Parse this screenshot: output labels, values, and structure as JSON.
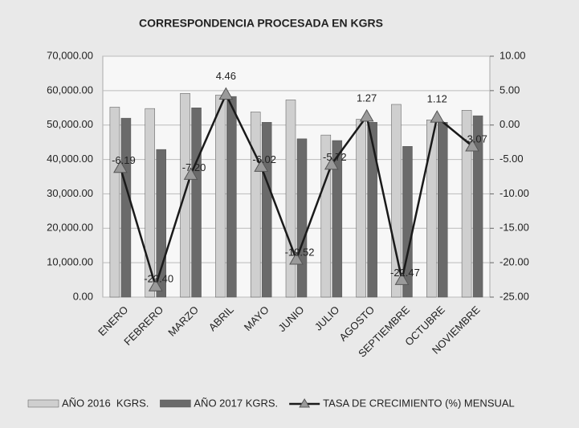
{
  "chart_data": {
    "type": "bar_line",
    "title": "CORRESPONDENCIA PROCESADA EN KGRS",
    "categories": [
      "ENERO",
      "FEBRERO",
      "MARZO",
      "ABRIL",
      "MAYO",
      "JUNIO",
      "JULIO",
      "AGOSTO",
      "SEPTIEMBRE",
      "OCTUBRE",
      "NOVIEMBRE"
    ],
    "series": [
      {
        "name": "AÑO 2016  KGRS.",
        "type": "bar",
        "color": "#cfcfcf",
        "values": [
          55200,
          54800,
          59200,
          58700,
          53800,
          57300,
          47100,
          51700,
          56000,
          51500,
          54300
        ]
      },
      {
        "name": "AÑO 2017 KGRS.",
        "type": "bar",
        "color": "#6a6a6a",
        "values": [
          52000,
          42900,
          55000,
          58300,
          50800,
          46000,
          45500,
          50800,
          43800,
          50800,
          52700
        ]
      },
      {
        "name": "TASA DE CRECIMIENTO (%) MENSUAL",
        "type": "line",
        "axis": "y2",
        "color": "#1a1a1a",
        "values": [
          -6.19,
          -23.4,
          -7.2,
          4.46,
          -6.02,
          -19.52,
          -5.72,
          1.27,
          -22.47,
          1.12,
          -3.07
        ],
        "value_labels": [
          "-6.19",
          "-23.40",
          "-7.20",
          "4.46",
          "-6.02",
          "-19.52",
          "-5.72",
          "1.27",
          "-22.47",
          "1.12",
          "-3.07"
        ]
      }
    ],
    "ylim": [
      0,
      70000
    ],
    "yticks": [
      {
        "value": 0,
        "label": "0.00"
      },
      {
        "value": 10000,
        "label": "10,000.00"
      },
      {
        "value": 20000,
        "label": "20,000.00"
      },
      {
        "value": 30000,
        "label": "30,000.00"
      },
      {
        "value": 40000,
        "label": "40,000.00"
      },
      {
        "value": 50000,
        "label": "50,000.00"
      },
      {
        "value": 60000,
        "label": "60,000.00"
      },
      {
        "value": 70000,
        "label": "70,000.00"
      }
    ],
    "y2lim": [
      -25,
      10
    ],
    "y2ticks": [
      {
        "value": -25,
        "label": "-25.00"
      },
      {
        "value": -20,
        "label": "-20.00"
      },
      {
        "value": -15,
        "label": "-15.00"
      },
      {
        "value": -10,
        "label": "-10.00"
      },
      {
        "value": -5,
        "label": "-5.00"
      },
      {
        "value": 0,
        "label": "0.00"
      },
      {
        "value": 5,
        "label": "5.00"
      },
      {
        "value": 10,
        "label": "10.00"
      }
    ],
    "grid": true
  }
}
